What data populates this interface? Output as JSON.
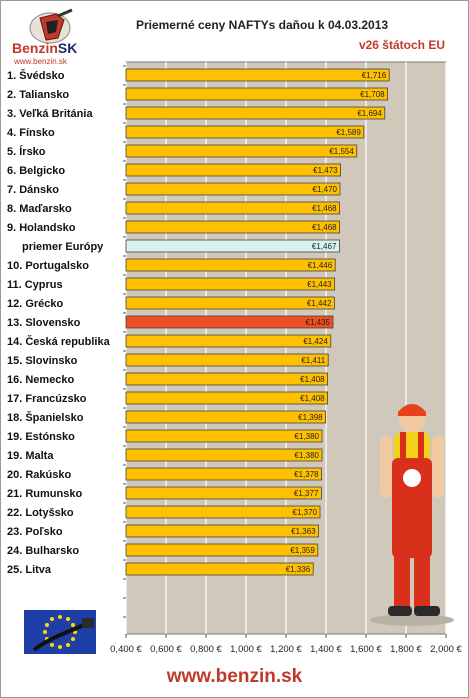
{
  "logo": {
    "brand": "Benzin",
    "brand_suffix": "SK",
    "url": "www.benzin.sk"
  },
  "chart_data": {
    "type": "bar",
    "orientation": "horizontal",
    "title": "Priemerné ceny NAFTYs daňou k 04.03.2013",
    "subtitle": "v26 štátoch EU",
    "categories": [
      "1. Švédsko",
      "2. Taliansko",
      "3. Veľká Británia",
      "4. Fínsko",
      "5. Írsko",
      "6. Belgicko",
      "7. Dánsko",
      "8. Maďarsko",
      "9. Holandsko",
      "priemer Európy",
      "10. Portugalsko",
      "11. Cyprus",
      "12. Grécko",
      "13. Slovensko",
      "14. Česká republika",
      "15. Slovinsko",
      "16. Nemecko",
      "17. Francúzsko",
      "18. Španielsko",
      "19. Estónsko",
      "19. Malta",
      "20. Rakúsko",
      "21. Rumunsko",
      "22. Lotyšsko",
      "23. Poľsko",
      "24. Bulharsko",
      "25. Litva"
    ],
    "values": [
      1.716,
      1.708,
      1.694,
      1.589,
      1.554,
      1.473,
      1.47,
      1.468,
      1.468,
      1.467,
      1.446,
      1.443,
      1.442,
      1.435,
      1.424,
      1.411,
      1.408,
      1.408,
      1.398,
      1.38,
      1.38,
      1.378,
      1.377,
      1.37,
      1.363,
      1.359,
      1.336
    ],
    "value_labels": [
      "€1,716",
      "€1,708",
      "€1,694",
      "€1,589",
      "€1,554",
      "€1,473",
      "€1,470",
      "€1,468",
      "€1,468",
      "€1,467",
      "€1,446",
      "€1,443",
      "€1,442",
      "€1,435",
      "€1,424",
      "€1,411",
      "€1,408",
      "€1,408",
      "€1,398",
      "€1,380",
      "€1,380",
      "€1,378",
      "€1,377",
      "€1,370",
      "€1,363",
      "€1,359",
      "€1,336"
    ],
    "highlight": {
      "average_index": 9,
      "slovakia_index": 13
    },
    "xlim": [
      0.4,
      2.0
    ],
    "xticks": [
      0.4,
      0.6,
      0.8,
      1.0,
      1.2,
      1.4,
      1.6,
      1.8,
      2.0
    ],
    "xtick_labels": [
      "0,400 €",
      "0,600 €",
      "0,800 €",
      "1,000 €",
      "1,200 €",
      "1,400 €",
      "1,600 €",
      "1,800 €",
      "2,000 €"
    ],
    "grid": "vertical",
    "colors": {
      "bar": "#ffc000",
      "average_bar": "#d8f3ee",
      "slovakia_bar": "#f04e23",
      "plot_bg": "#cfc8bb",
      "average_label": "#4aa3d8",
      "slovakia_label": "#e8401c"
    }
  },
  "footer": {
    "url": "www.benzin.sk"
  }
}
